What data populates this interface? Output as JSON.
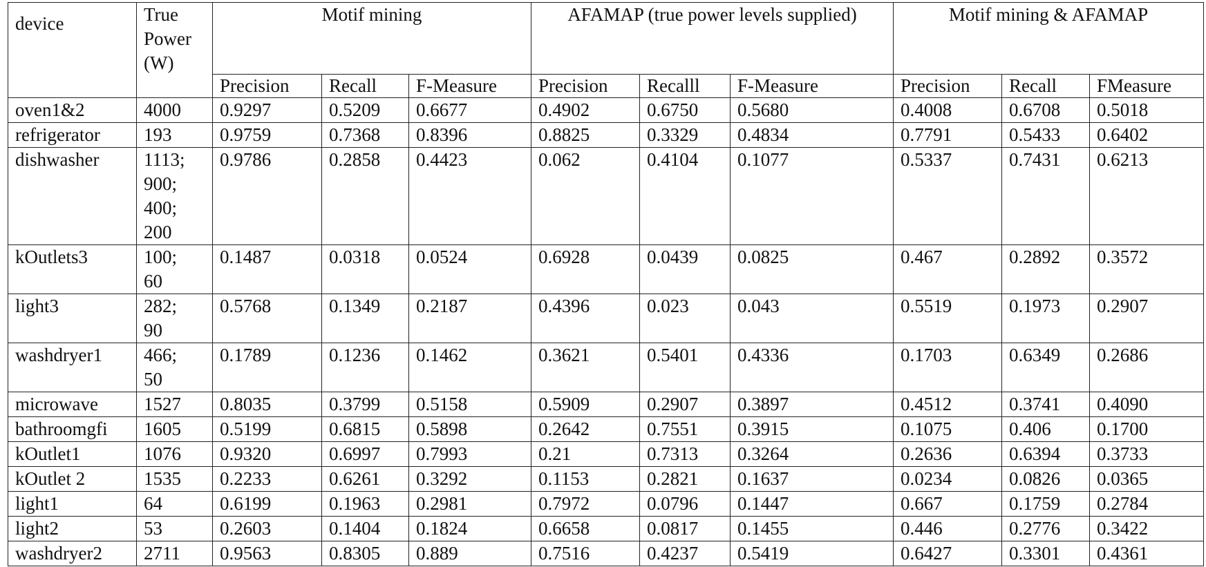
{
  "table": {
    "header": {
      "device": "device",
      "true_power": [
        "True",
        "Power",
        "(W)"
      ],
      "groups": [
        {
          "title": "Motif mining",
          "columns": [
            "Precision",
            "Recall",
            "F-Measure"
          ]
        },
        {
          "title": "AFAMAP (true power levels supplied)",
          "columns": [
            "Precision",
            "Recalll",
            "F-Measure"
          ]
        },
        {
          "title": "Motif mining & AFAMAP",
          "columns": [
            "Precision",
            "Recall",
            "FMeasure"
          ]
        }
      ]
    },
    "rows": [
      {
        "device": "oven1&2",
        "power": [
          "4000"
        ],
        "values": [
          "0.9297",
          "0.5209",
          "0.6677",
          "0.4902",
          "0.6750",
          "0.5680",
          "0.4008",
          "0.6708",
          "0.5018"
        ]
      },
      {
        "device": "refrigerator",
        "power": [
          "193"
        ],
        "values": [
          "0.9759",
          "0.7368",
          "0.8396",
          "0.8825",
          "0.3329",
          "0.4834",
          "0.7791",
          "0.5433",
          "0.6402"
        ]
      },
      {
        "device": "dishwasher",
        "power": [
          "1113;",
          "900;",
          "400;",
          "200"
        ],
        "values": [
          "0.9786",
          "0.2858",
          "0.4423",
          "0.062",
          "0.4104",
          "0.1077",
          "0.5337",
          "0.7431",
          "0.6213"
        ]
      },
      {
        "device": "kOutlets3",
        "power": [
          "100;",
          "60"
        ],
        "values": [
          "0.1487",
          "0.0318",
          "0.0524",
          "0.6928",
          "0.0439",
          "0.0825",
          "0.467",
          "0.2892",
          "0.3572"
        ]
      },
      {
        "device": "light3",
        "power": [
          "282;",
          "90"
        ],
        "values": [
          "0.5768",
          "0.1349",
          "0.2187",
          "0.4396",
          "0.023",
          "0.043",
          "0.5519",
          "0.1973",
          "0.2907"
        ]
      },
      {
        "device": "washdryer1",
        "power": [
          "466;",
          "50"
        ],
        "values": [
          "0.1789",
          "0.1236",
          "0.1462",
          "0.3621",
          "0.5401",
          "0.4336",
          "0.1703",
          "0.6349",
          "0.2686"
        ]
      },
      {
        "device": "microwave",
        "power": [
          "1527"
        ],
        "values": [
          "0.8035",
          "0.3799",
          "0.5158",
          "0.5909",
          "0.2907",
          "0.3897",
          "0.4512",
          "0.3741",
          "0.4090"
        ]
      },
      {
        "device": "bathroomgfi",
        "power": [
          "1605"
        ],
        "values": [
          "0.5199",
          "0.6815",
          "0.5898",
          "0.2642",
          "0.7551",
          "0.3915",
          "0.1075",
          "0.406",
          "0.1700"
        ]
      },
      {
        "device": "kOutlet1",
        "power": [
          "1076"
        ],
        "values": [
          "0.9320",
          "0.6997",
          "0.7993",
          "0.21",
          "0.7313",
          "0.3264",
          "0.2636",
          "0.6394",
          "0.3733"
        ]
      },
      {
        "device": "kOutlet 2",
        "power": [
          "1535"
        ],
        "values": [
          "0.2233",
          "0.6261",
          "0.3292",
          "0.1153",
          "0.2821",
          "0.1637",
          "0.0234",
          "0.0826",
          "0.0365"
        ]
      },
      {
        "device": "light1",
        "power": [
          "64"
        ],
        "values": [
          "0.6199",
          "0.1963",
          "0.2981",
          "0.7972",
          "0.0796",
          "0.1447",
          "0.667",
          "0.1759",
          "0.2784"
        ]
      },
      {
        "device": "light2",
        "power": [
          "53"
        ],
        "values": [
          "0.2603",
          "0.1404",
          "0.1824",
          "0.6658",
          "0.0817",
          "0.1455",
          "0.446",
          "0.2776",
          "0.3422"
        ]
      },
      {
        "device": "washdryer2",
        "power": [
          "2711"
        ],
        "values": [
          "0.9563",
          "0.8305",
          "0.889",
          "0.7516",
          "0.4237",
          "0.5419",
          "0.6427",
          "0.3301",
          "0.4361"
        ]
      }
    ]
  }
}
